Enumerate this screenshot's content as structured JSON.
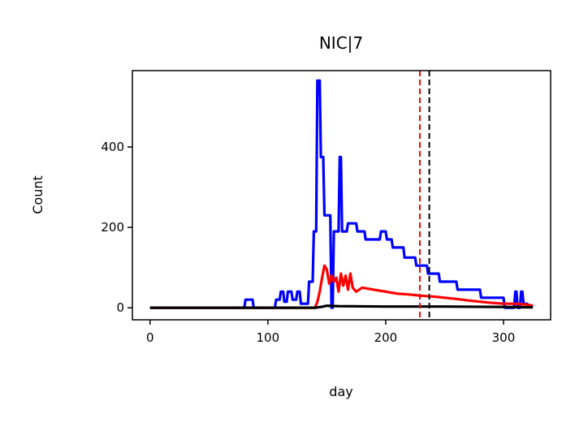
{
  "chart_data": {
    "type": "line",
    "title": "NIC|7",
    "xlabel": "day",
    "ylabel": "Count",
    "xlim": [
      -15,
      340
    ],
    "ylim": [
      -30,
      590
    ],
    "xticks": [
      0,
      100,
      200,
      300
    ],
    "yticks": [
      0,
      200,
      400
    ],
    "grid": false,
    "legend": "none",
    "series": [
      {
        "color": "#0000ff",
        "x": [
          0,
          80,
          81,
          87,
          88,
          106,
          107,
          110,
          111,
          113,
          114,
          116,
          117,
          120,
          121,
          124,
          125,
          127,
          128,
          134,
          135,
          138,
          139,
          141,
          142,
          144,
          145,
          147,
          148,
          153,
          154,
          155,
          156,
          160,
          161,
          162,
          163,
          167,
          168,
          175,
          176,
          182,
          183,
          195,
          196,
          200,
          201,
          205,
          206,
          215,
          216,
          225,
          226,
          235,
          236,
          245,
          246,
          260,
          261,
          280,
          281,
          300,
          301,
          309,
          310,
          311,
          312,
          314,
          315,
          316,
          317,
          320,
          321,
          325
        ],
        "y": [
          0,
          0,
          20,
          20,
          0,
          0,
          20,
          20,
          40,
          40,
          15,
          15,
          40,
          40,
          20,
          20,
          40,
          40,
          10,
          10,
          65,
          65,
          190,
          190,
          565,
          565,
          375,
          375,
          230,
          230,
          0,
          0,
          190,
          190,
          375,
          375,
          190,
          190,
          210,
          210,
          190,
          190,
          170,
          170,
          190,
          190,
          170,
          170,
          150,
          150,
          125,
          125,
          105,
          105,
          85,
          85,
          65,
          65,
          45,
          45,
          25,
          25,
          0,
          0,
          40,
          40,
          0,
          0,
          40,
          40,
          10,
          10,
          5,
          5
        ]
      },
      {
        "color": "#ff0000",
        "x": [
          0,
          140,
          142,
          144,
          146,
          148,
          150,
          152,
          154,
          156,
          158,
          160,
          162,
          164,
          166,
          168,
          170,
          172,
          175,
          180,
          190,
          200,
          210,
          220,
          230,
          240,
          250,
          260,
          270,
          280,
          290,
          300,
          310,
          320,
          325
        ],
        "y": [
          0,
          0,
          15,
          40,
          75,
          105,
          95,
          60,
          80,
          65,
          75,
          40,
          85,
          55,
          80,
          45,
          85,
          50,
          40,
          50,
          45,
          40,
          35,
          33,
          30,
          28,
          25,
          22,
          18,
          15,
          12,
          10,
          10,
          8,
          5
        ]
      },
      {
        "color": "#000000",
        "x": [
          0,
          140,
          145,
          150,
          160,
          200,
          250,
          300,
          325
        ],
        "y": [
          0,
          0,
          2,
          5,
          4,
          3,
          3,
          2,
          1
        ]
      }
    ],
    "vlines": [
      {
        "x": 229,
        "color": "#ff0000",
        "style": "dashed"
      },
      {
        "x": 237,
        "color": "#000000",
        "style": "dashed"
      }
    ]
  }
}
